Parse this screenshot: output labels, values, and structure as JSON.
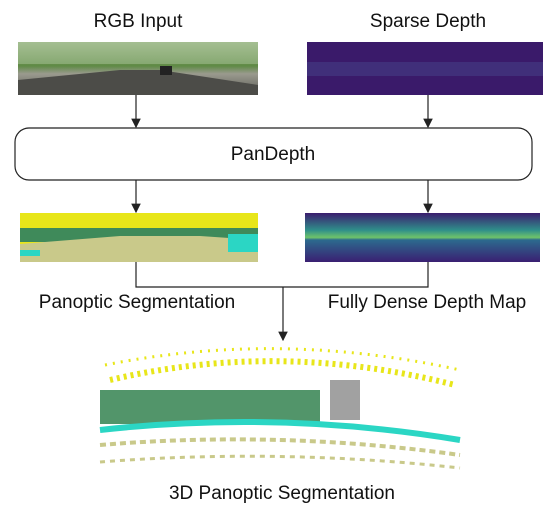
{
  "nodes": [
    {
      "label": "RGB Input"
    },
    {
      "label": "Sparse Depth"
    },
    {
      "label": "PanDepth"
    },
    {
      "label": "Panoptic Segmentation"
    },
    {
      "label": "Fully Dense Depth Map"
    },
    {
      "label": "3D Panoptic Segmentation"
    }
  ]
}
